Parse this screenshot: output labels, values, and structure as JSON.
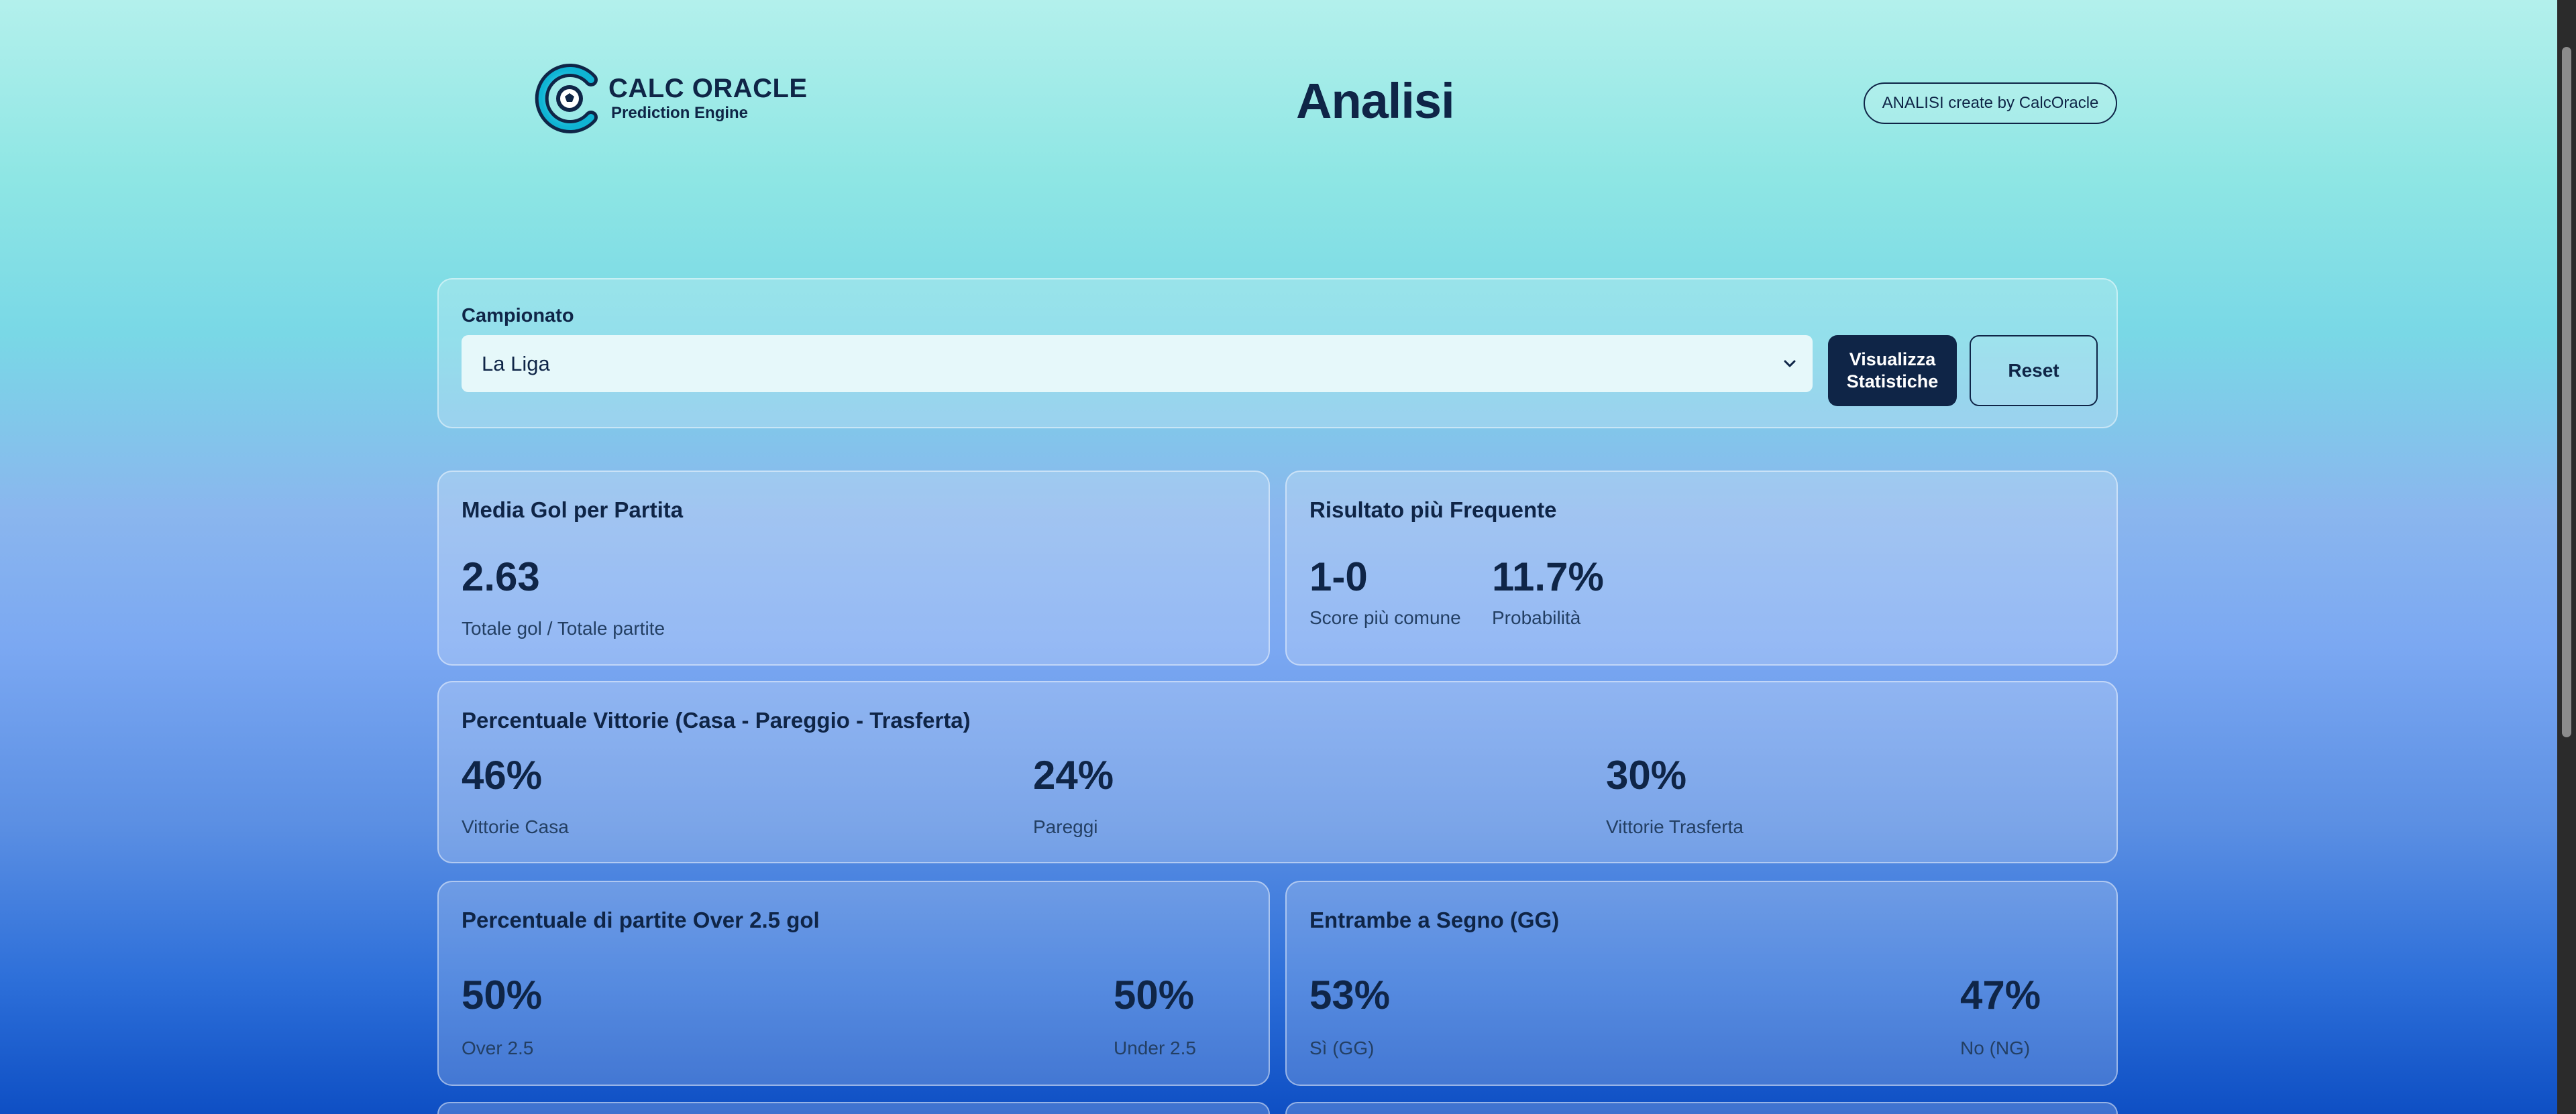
{
  "header": {
    "logo_title": "CALC ORACLE",
    "logo_subtitle": "Prediction Engine",
    "title": "Analisi",
    "credit_label": "ANALISI create by CalcOracle"
  },
  "filter": {
    "label": "Campionato",
    "selected": "La Liga",
    "submit_label": "Visualizza Statistiche",
    "reset_label": "Reset"
  },
  "cards": {
    "avg_goals": {
      "title": "Media Gol per Partita",
      "value": "2.63",
      "caption": "Totale gol / Totale partite"
    },
    "frequent_result": {
      "title": "Risultato più Frequente",
      "score": "1-0",
      "score_caption": "Score più comune",
      "probability": "11.7%",
      "probability_caption": "Probabilità"
    },
    "win_pct": {
      "title": "Percentuale Vittorie (Casa - Pareggio - Trasferta)",
      "home": "46%",
      "home_caption": "Vittorie Casa",
      "draw": "24%",
      "draw_caption": "Pareggi",
      "away": "30%",
      "away_caption": "Vittorie Trasferta"
    },
    "over_under": {
      "title": "Percentuale di partite Over 2.5 gol",
      "over": "50%",
      "over_caption": "Over 2.5",
      "under": "50%",
      "under_caption": "Under 2.5"
    },
    "btts": {
      "title": "Entrambe a Segno (GG)",
      "yes": "53%",
      "yes_caption": "Sì (GG)",
      "no": "47%",
      "no_caption": "No (NG)"
    }
  },
  "colors": {
    "primary": "#0f2547",
    "logo_accent": "#1ec8e0"
  },
  "icons": {
    "logo": "soccer-ball-c-logo-icon",
    "select": "chevron-down-icon"
  }
}
